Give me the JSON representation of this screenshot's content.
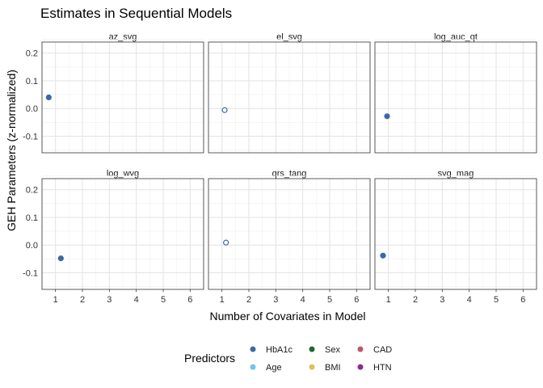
{
  "chart_data": {
    "type": "scatter",
    "title": "Estimates in Sequential Models",
    "xlabel": "Number of Covariates in Model",
    "ylabel": "GEH Parameters (z-normalized)",
    "xlim": [
      0.5,
      6.5
    ],
    "ylim": [
      -0.16,
      0.24
    ],
    "x_ticks": [
      1,
      2,
      3,
      4,
      5,
      6
    ],
    "y_ticks": [
      -0.1,
      0.0,
      0.1,
      0.2
    ],
    "y_tick_labels": [
      "-0.1",
      "0.0",
      "0.1",
      "0.2"
    ],
    "grid": true,
    "facets": [
      {
        "name": "az_svg",
        "points": [
          {
            "x": 0.75,
            "y": 0.04,
            "predictor": "HbA1c",
            "filled": true
          }
        ]
      },
      {
        "name": "el_svg",
        "points": [
          {
            "x": 1.1,
            "y": -0.006,
            "predictor": "HbA1c",
            "filled": false
          }
        ]
      },
      {
        "name": "log_auc_qt",
        "points": [
          {
            "x": 0.95,
            "y": -0.028,
            "predictor": "HbA1c",
            "filled": true
          }
        ]
      },
      {
        "name": "log_wvg",
        "points": [
          {
            "x": 1.2,
            "y": -0.048,
            "predictor": "HbA1c",
            "filled": true
          }
        ]
      },
      {
        "name": "qrs_tang",
        "points": [
          {
            "x": 1.15,
            "y": 0.009,
            "predictor": "HbA1c",
            "filled": false
          }
        ]
      },
      {
        "name": "svg_mag",
        "points": [
          {
            "x": 0.8,
            "y": -0.038,
            "predictor": "HbA1c",
            "filled": true
          }
        ]
      }
    ],
    "legend": {
      "title": "Predictors",
      "position": "bottom",
      "entries": [
        {
          "name": "HbA1c",
          "color": "#3a6aa6"
        },
        {
          "name": "Age",
          "color": "#74c3ec"
        },
        {
          "name": "Sex",
          "color": "#1c6b2a"
        },
        {
          "name": "BMI",
          "color": "#d9c25b"
        },
        {
          "name": "CAD",
          "color": "#c4546b"
        },
        {
          "name": "HTN",
          "color": "#8c2b8e"
        }
      ]
    }
  }
}
